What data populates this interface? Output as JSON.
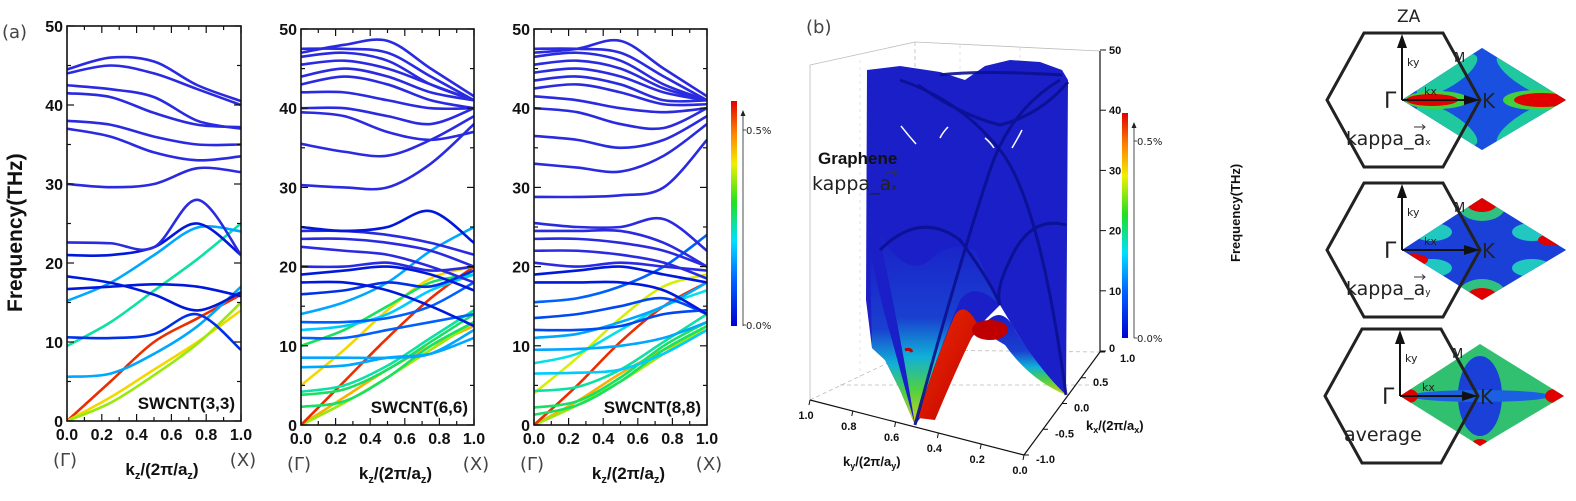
{
  "panel_a": {
    "label": "(a)",
    "ylabel": "Frequency(THz)",
    "xlabel_main": "k",
    "xlabel_sub": "z",
    "xlabel_rest": "/(2π/a",
    "xlabel_sub2": "z",
    "xlabel_close": ")",
    "gamma_label": "(Γ)",
    "x_label": "(X)",
    "colorbar": {
      "max_label": "0.5%",
      "min_label": "0.0%"
    }
  },
  "panel_b": {
    "label": "(b)",
    "title_bold": "Graphene",
    "kappa_prefix": "kappa_",
    "kappa_vec": "a",
    "kappa_sub": "x",
    "zlabel": "Frequency(THz)",
    "ky_label": "k",
    "ky_sub": "y",
    "ky_rest": "/(2π/a",
    "ky_sub2": "y",
    "kx_label": "k",
    "kx_sub": "x",
    "kx_rest": "/(2π/a",
    "kx_sub2": "x",
    "close": ")",
    "colorbar": {
      "max_label": "0.5%",
      "min_label": "0.0%"
    }
  },
  "bz_maps": {
    "title": "ZA",
    "gamma": "Γ",
    "k": "K",
    "m": "M",
    "kx": "kx",
    "ky": "ky",
    "maps": [
      {
        "prefix": "kappa_",
        "vec": "a",
        "sub": "x"
      },
      {
        "prefix": "kappa_",
        "vec": "a",
        "sub": "y"
      },
      {
        "prefix": "average",
        "vec": "",
        "sub": ""
      }
    ]
  },
  "colors": {
    "band_min": "#0000c8",
    "band_max": "#e00000",
    "surface": "#1a1fc8",
    "frame": "#111111"
  },
  "chart_data": [
    {
      "type": "line",
      "title": "SWCNT(3,3)",
      "xlim": [
        0,
        1.0
      ],
      "ylim": [
        0,
        50
      ],
      "xticks": [
        "0.0",
        "0.2",
        "0.4",
        "0.6",
        "0.8",
        "1.0"
      ],
      "yticks": [
        "0",
        "10",
        "20",
        "30",
        "40",
        "50"
      ],
      "k": [
        0,
        0.25,
        0.5,
        0.75,
        1.0
      ],
      "color_scale": "jet, 0.0% to 0.5%",
      "bands": [
        {
          "f": [
            0,
            5,
            10,
            13,
            16
          ],
          "w": 0.95
        },
        {
          "f": [
            0,
            3,
            6.5,
            10,
            14
          ],
          "w": 0.75
        },
        {
          "f": [
            0,
            2.3,
            5.8,
            9.8,
            15
          ],
          "w": 0.65
        },
        {
          "f": [
            9.5,
            12.5,
            16.5,
            20.5,
            25
          ],
          "w": 0.45
        },
        {
          "f": [
            5.6,
            6,
            8.5,
            12,
            17
          ],
          "w": 0.3
        },
        {
          "f": [
            10.6,
            10.5,
            11,
            13.5,
            9
          ],
          "w": 0.1
        },
        {
          "f": [
            15.2,
            17.5,
            21,
            24.5,
            24
          ],
          "w": 0.3
        },
        {
          "f": [
            16.7,
            17,
            17.3,
            17,
            15.8
          ],
          "w": 0.05
        },
        {
          "f": [
            18.3,
            17.5,
            16,
            14,
            16.3
          ],
          "w": 0.05
        },
        {
          "f": [
            21,
            21,
            22,
            25,
            21
          ],
          "w": 0.05
        },
        {
          "f": [
            22.6,
            22.5,
            22,
            28,
            21
          ],
          "w": 0
        },
        {
          "f": [
            30,
            29.6,
            30,
            32,
            31.5
          ],
          "w": 0
        },
        {
          "f": [
            37,
            36,
            34,
            33,
            33.5
          ],
          "w": 0
        },
        {
          "f": [
            38,
            37.5,
            36,
            35,
            35
          ],
          "w": 0
        },
        {
          "f": [
            41.5,
            41,
            39,
            37.5,
            37.2
          ],
          "w": 0
        },
        {
          "f": [
            42.5,
            42,
            41,
            38,
            37
          ],
          "w": 0
        },
        {
          "f": [
            44,
            45,
            44,
            42,
            40
          ],
          "w": 0
        },
        {
          "f": [
            44.5,
            46,
            45.5,
            42.5,
            40.5
          ],
          "w": 0
        }
      ]
    },
    {
      "type": "line",
      "title": "SWCNT(6,6)",
      "xlim": [
        0,
        1.0
      ],
      "ylim": [
        0,
        50
      ],
      "xticks": [
        "0.0",
        "0.2",
        "0.4",
        "0.6",
        "0.8",
        "1.0"
      ],
      "yticks": [
        "0",
        "10",
        "20",
        "30",
        "40",
        "50"
      ],
      "k": [
        0,
        0.25,
        0.5,
        0.75,
        1.0
      ],
      "color_scale": "jet, 0.0% to 0.5%",
      "bands": [
        {
          "f": [
            0,
            3.5,
            7,
            10,
            12.5
          ],
          "w": 0.8
        },
        {
          "f": [
            0,
            2.8,
            6,
            9.5,
            13
          ],
          "w": 0.65
        },
        {
          "f": [
            0,
            5.5,
            11,
            16,
            20
          ],
          "w": 0.95
        },
        {
          "f": [
            5,
            9.5,
            14.5,
            18.5,
            20
          ],
          "w": 0.75
        },
        {
          "f": [
            2.3,
            3,
            6,
            10,
            13
          ],
          "w": 0.5
        },
        {
          "f": [
            3.8,
            4.5,
            7,
            10.5,
            14
          ],
          "w": 0.5
        },
        {
          "f": [
            4.2,
            5,
            7.5,
            11,
            14.5
          ],
          "w": 0.45
        },
        {
          "f": [
            7.3,
            7.5,
            8.5,
            9,
            11
          ],
          "w": 0.3
        },
        {
          "f": [
            8.5,
            8.5,
            8.5,
            9,
            12
          ],
          "w": 0.3
        },
        {
          "f": [
            10,
            12,
            15,
            18,
            19
          ],
          "w": 0.5
        },
        {
          "f": [
            11,
            11,
            12,
            13,
            14
          ],
          "w": 0.2
        },
        {
          "f": [
            12,
            12.5,
            14,
            17,
            19
          ],
          "w": 0.35
        },
        {
          "f": [
            13,
            13,
            13.5,
            15,
            18
          ],
          "w": 0.2
        },
        {
          "f": [
            14,
            15.5,
            18,
            22,
            25
          ],
          "w": 0.3
        },
        {
          "f": [
            16.5,
            17,
            18,
            17.5,
            19.5
          ],
          "w": 0.1
        },
        {
          "f": [
            18,
            18,
            17,
            15,
            12.5
          ],
          "w": 0.05
        },
        {
          "f": [
            19,
            19.5,
            20,
            19,
            17
          ],
          "w": 0.05
        },
        {
          "f": [
            20,
            20,
            20.5,
            19.5,
            20
          ],
          "w": 0
        },
        {
          "f": [
            22.5,
            22,
            21.5,
            20,
            18
          ],
          "w": 0
        },
        {
          "f": [
            23.5,
            23.5,
            23,
            22,
            20
          ],
          "w": 0
        },
        {
          "f": [
            24.5,
            24.5,
            24,
            23,
            21.5
          ],
          "w": 0
        },
        {
          "f": [
            25,
            24.5,
            25,
            27,
            23
          ],
          "w": 0.05
        },
        {
          "f": [
            30.3,
            30,
            30,
            33,
            38
          ],
          "w": 0
        },
        {
          "f": [
            35.5,
            34.5,
            34,
            36,
            39
          ],
          "w": 0
        },
        {
          "f": [
            39.5,
            39,
            37,
            36,
            37
          ],
          "w": 0
        },
        {
          "f": [
            40,
            40,
            39,
            38,
            40
          ],
          "w": 0
        },
        {
          "f": [
            42,
            42,
            41,
            40,
            40
          ],
          "w": 0
        },
        {
          "f": [
            43,
            44,
            43,
            41,
            40
          ],
          "w": 0
        },
        {
          "f": [
            44,
            45,
            44,
            42,
            41
          ],
          "w": 0
        },
        {
          "f": [
            45.5,
            46,
            45,
            43,
            41
          ],
          "w": 0
        },
        {
          "f": [
            46.5,
            47,
            46,
            43,
            41
          ],
          "w": 0
        },
        {
          "f": [
            47,
            48,
            48.5,
            45,
            41.5
          ],
          "w": 0
        },
        {
          "f": [
            47.5,
            47.5,
            47,
            44,
            41
          ],
          "w": 0
        }
      ]
    },
    {
      "type": "line",
      "title": "SWCNT(8,8)",
      "xlim": [
        0,
        1.0
      ],
      "ylim": [
        0,
        50
      ],
      "xticks": [
        "0.0",
        "0.2",
        "0.4",
        "0.6",
        "0.8",
        "1.0"
      ],
      "yticks": [
        "0",
        "10",
        "20",
        "30",
        "40",
        "50"
      ],
      "k": [
        0,
        0.25,
        0.5,
        0.75,
        1.0
      ],
      "color_scale": "jet, 0.0% to 0.5%",
      "bands": [
        {
          "f": [
            0,
            3,
            6.5,
            9.5,
            12
          ],
          "w": 0.8
        },
        {
          "f": [
            0,
            2.5,
            5.5,
            9,
            12.5
          ],
          "w": 0.65
        },
        {
          "f": [
            0,
            5,
            10.5,
            15,
            18
          ],
          "w": 0.95
        },
        {
          "f": [
            4,
            8.5,
            13.5,
            17.5,
            19
          ],
          "w": 0.7
        },
        {
          "f": [
            1.3,
            2.5,
            5.5,
            9.5,
            12.5
          ],
          "w": 0.5
        },
        {
          "f": [
            2.2,
            3,
            6,
            10,
            13
          ],
          "w": 0.5
        },
        {
          "f": [
            4.3,
            4.8,
            7,
            10.5,
            14
          ],
          "w": 0.45
        },
        {
          "f": [
            6.5,
            6.6,
            7,
            9,
            12
          ],
          "w": 0.35
        },
        {
          "f": [
            7.8,
            9,
            12,
            15,
            17
          ],
          "w": 0.4
        },
        {
          "f": [
            9.5,
            9.6,
            10,
            11,
            13
          ],
          "w": 0.3
        },
        {
          "f": [
            11,
            11.5,
            13,
            15,
            18
          ],
          "w": 0.3
        },
        {
          "f": [
            12,
            12,
            12.5,
            14,
            14.5
          ],
          "w": 0.15
        },
        {
          "f": [
            13.5,
            14,
            15,
            16,
            14
          ],
          "w": 0.15
        },
        {
          "f": [
            15.5,
            16,
            17.5,
            20,
            24
          ],
          "w": 0.2
        },
        {
          "f": [
            18,
            18,
            18,
            17,
            14
          ],
          "w": 0.05
        },
        {
          "f": [
            19,
            19.5,
            20,
            19,
            18
          ],
          "w": 0.05
        },
        {
          "f": [
            20.5,
            20,
            20.5,
            20,
            19.5
          ],
          "w": 0
        },
        {
          "f": [
            22,
            22,
            21.5,
            20.5,
            18.5
          ],
          "w": 0
        },
        {
          "f": [
            23.5,
            23.5,
            23,
            22,
            20
          ],
          "w": 0
        },
        {
          "f": [
            24.5,
            24.5,
            24.5,
            23,
            20
          ],
          "w": 0
        },
        {
          "f": [
            25.5,
            25,
            25,
            26,
            22
          ],
          "w": 0
        },
        {
          "f": [
            28.8,
            28.8,
            29,
            30,
            36
          ],
          "w": 0
        },
        {
          "f": [
            33,
            32.5,
            32,
            34,
            38
          ],
          "w": 0
        },
        {
          "f": [
            36.5,
            36,
            35,
            36,
            39
          ],
          "w": 0
        },
        {
          "f": [
            40,
            39.5,
            38,
            37.5,
            40
          ],
          "w": 0
        },
        {
          "f": [
            41.5,
            41,
            40,
            39.5,
            40
          ],
          "w": 0
        },
        {
          "f": [
            42.5,
            43,
            42,
            40.5,
            40.5
          ],
          "w": 0
        },
        {
          "f": [
            43.5,
            44,
            43,
            41,
            41
          ],
          "w": 0
        },
        {
          "f": [
            44.5,
            45,
            44,
            42,
            41
          ],
          "w": 0
        },
        {
          "f": [
            45.5,
            46,
            45,
            42.5,
            41
          ],
          "w": 0
        },
        {
          "f": [
            46.5,
            47,
            46,
            43,
            41
          ],
          "w": 0
        },
        {
          "f": [
            47,
            47.5,
            48.5,
            45,
            41.5
          ],
          "w": 0
        },
        {
          "f": [
            47.5,
            47.5,
            47,
            44,
            41
          ],
          "w": 0
        }
      ]
    },
    {
      "type": "surface3d",
      "title": "Graphene",
      "zlim": [
        0,
        50
      ],
      "zticks": [
        "0",
        "10",
        "20",
        "30",
        "40",
        "50"
      ],
      "xticks_ky": [
        "1.0",
        "0.8",
        "0.6",
        "0.4",
        "0.2",
        "0.0"
      ],
      "yticks_kx": [
        "1.0",
        "0.5",
        "0.0",
        "-0.5",
        "-1.0"
      ],
      "zlabel": "Frequency(THz)",
      "color_scale": "jet, 0.0% to 0.5%"
    }
  ]
}
